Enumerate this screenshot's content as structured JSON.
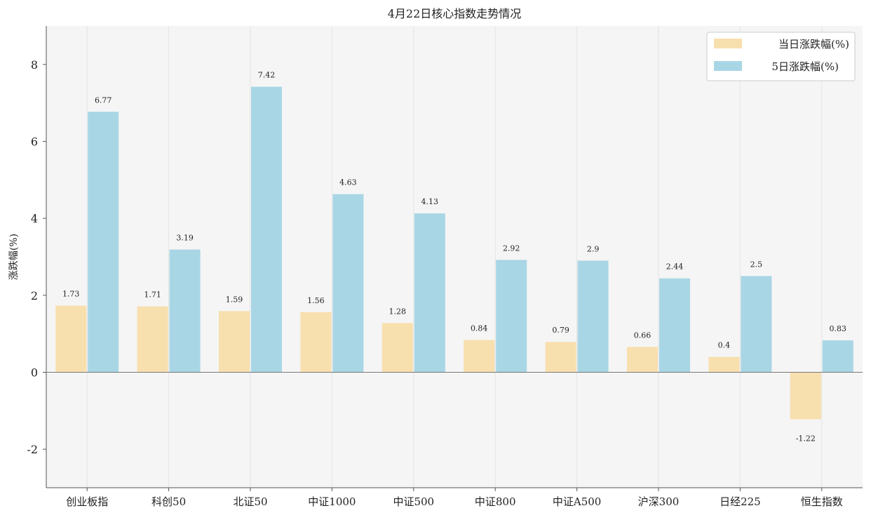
{
  "chart_data": {
    "type": "bar",
    "title": "4月22日核心指数走势情况",
    "xlabel": "",
    "ylabel": "涨跌幅(%)",
    "ylim": [
      -3,
      9
    ],
    "yticks": [
      -2,
      0,
      2,
      4,
      6,
      8
    ],
    "ytick_labels": [
      "-2",
      "0",
      "2",
      "4",
      "6",
      "8"
    ],
    "categories": [
      "创业板指",
      "科创50",
      "北证50",
      "中证1000",
      "中证500",
      "中证800",
      "中证A500",
      "沪深300",
      "日经225",
      "恒生指数"
    ],
    "series": [
      {
        "name": "当日涨跌幅(%)",
        "color": "#f8dfae",
        "values": [
          1.73,
          1.71,
          1.59,
          1.56,
          1.28,
          0.84,
          0.79,
          0.66,
          0.4,
          -1.22
        ],
        "labels": [
          "1.73",
          "1.71",
          "1.59",
          "1.56",
          "1.28",
          "0.84",
          "0.79",
          "0.66",
          "0.4",
          "-1.22"
        ]
      },
      {
        "name": "5日涨跌幅(%)",
        "color": "#a9d6e5",
        "values": [
          6.77,
          3.19,
          7.42,
          4.63,
          4.13,
          2.92,
          2.9,
          2.44,
          2.5,
          0.83
        ],
        "labels": [
          "6.77",
          "3.19",
          "7.42",
          "4.63",
          "4.13",
          "2.92",
          "2.9",
          "2.44",
          "2.5",
          "0.83"
        ]
      }
    ],
    "grid": "vertical",
    "legend_position": "top-right",
    "background_color": "#f5f5f5"
  }
}
